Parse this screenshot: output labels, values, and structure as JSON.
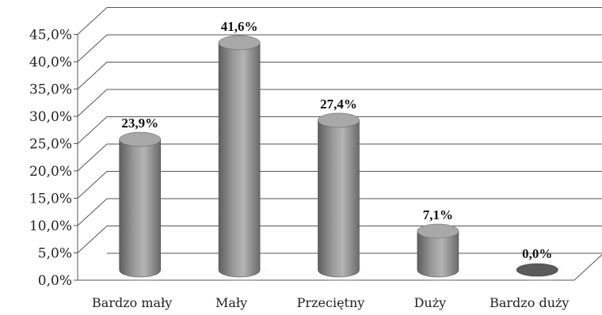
{
  "chart_data": {
    "type": "bar",
    "style": "3d-cylinder",
    "categories": [
      "Bardzo mały",
      "Mały",
      "Przeciętny",
      "Duży",
      "Bardzo duży"
    ],
    "values": [
      23.9,
      41.6,
      27.4,
      7.1,
      0.0
    ],
    "data_labels": [
      "23,9%",
      "41,6%",
      "27,4%",
      "7,1%",
      "0,0%"
    ],
    "y_tick_labels": [
      "0,0%",
      "5,0%",
      "10,0%",
      "15,0%",
      "20,0%",
      "25,0%",
      "30,0%",
      "35,0%",
      "40,0%",
      "45,0%"
    ],
    "ylim": [
      0,
      45
    ],
    "ytick_step": 5,
    "grid": true,
    "legend": "none",
    "title": "",
    "xlabel": "",
    "ylabel": "",
    "colors": {
      "bar": "#8c8c8c",
      "bar_top": "#a8a8a8",
      "grid": "#555555",
      "text": "#222222"
    }
  }
}
